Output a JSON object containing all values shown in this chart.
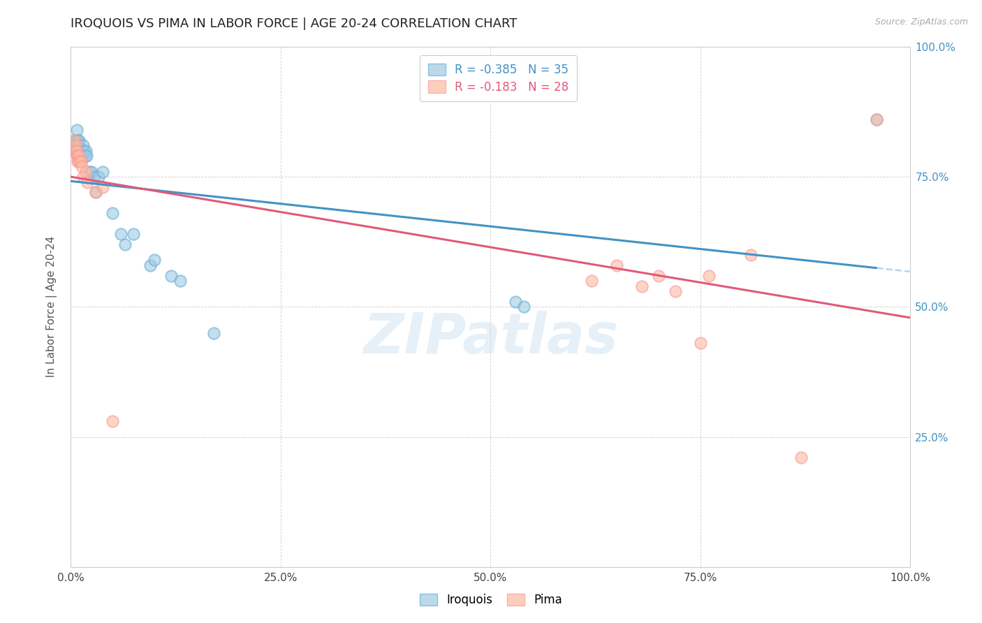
{
  "title": "IROQUOIS VS PIMA IN LABOR FORCE | AGE 20-24 CORRELATION CHART",
  "source_text": "Source: ZipAtlas.com",
  "ylabel": "In Labor Force | Age 20-24",
  "xlim": [
    0.0,
    1.0
  ],
  "ylim": [
    0.0,
    1.0
  ],
  "xticks": [
    0.0,
    0.25,
    0.5,
    0.75,
    1.0
  ],
  "yticks": [
    0.0,
    0.25,
    0.5,
    0.75,
    1.0
  ],
  "xticklabels": [
    "0.0%",
    "25.0%",
    "50.0%",
    "75.0%",
    "100.0%"
  ],
  "right_yticklabels": [
    "25.0%",
    "50.0%",
    "75.0%",
    "100.0%"
  ],
  "right_yticks": [
    0.25,
    0.5,
    0.75,
    1.0
  ],
  "iroquois_color": "#9ecae1",
  "iroquois_edge": "#6baed6",
  "pima_color": "#fcbba1",
  "pima_edge": "#fb9a99",
  "line_blue": "#4292c6",
  "line_pink": "#e05a7a",
  "legend_label_iroquois": "R = -0.385   N = 35",
  "legend_label_pima": "R = -0.183   N = 28",
  "watermark": "ZIPatlas",
  "iroquois_x": [
    0.005,
    0.006,
    0.007,
    0.007,
    0.008,
    0.008,
    0.009,
    0.01,
    0.01,
    0.012,
    0.013,
    0.014,
    0.015,
    0.016,
    0.017,
    0.018,
    0.019,
    0.022,
    0.025,
    0.028,
    0.03,
    0.033,
    0.038,
    0.05,
    0.06,
    0.065,
    0.075,
    0.095,
    0.1,
    0.12,
    0.13,
    0.17,
    0.53,
    0.54,
    0.96
  ],
  "iroquois_y": [
    0.82,
    0.8,
    0.82,
    0.84,
    0.82,
    0.81,
    0.8,
    0.82,
    0.81,
    0.79,
    0.8,
    0.79,
    0.81,
    0.8,
    0.79,
    0.8,
    0.79,
    0.76,
    0.76,
    0.75,
    0.72,
    0.75,
    0.76,
    0.68,
    0.64,
    0.62,
    0.64,
    0.58,
    0.59,
    0.56,
    0.55,
    0.45,
    0.51,
    0.5,
    0.86
  ],
  "pima_x": [
    0.005,
    0.006,
    0.006,
    0.007,
    0.007,
    0.008,
    0.008,
    0.009,
    0.01,
    0.011,
    0.012,
    0.013,
    0.015,
    0.018,
    0.02,
    0.03,
    0.038,
    0.05,
    0.62,
    0.65,
    0.68,
    0.7,
    0.72,
    0.75,
    0.76,
    0.81,
    0.87,
    0.96
  ],
  "pima_y": [
    0.82,
    0.81,
    0.8,
    0.8,
    0.79,
    0.79,
    0.78,
    0.78,
    0.79,
    0.78,
    0.78,
    0.77,
    0.75,
    0.76,
    0.74,
    0.72,
    0.73,
    0.28,
    0.55,
    0.58,
    0.54,
    0.56,
    0.53,
    0.43,
    0.56,
    0.6,
    0.21,
    0.86
  ],
  "background_color": "#ffffff",
  "grid_color": "#d0d0d0"
}
